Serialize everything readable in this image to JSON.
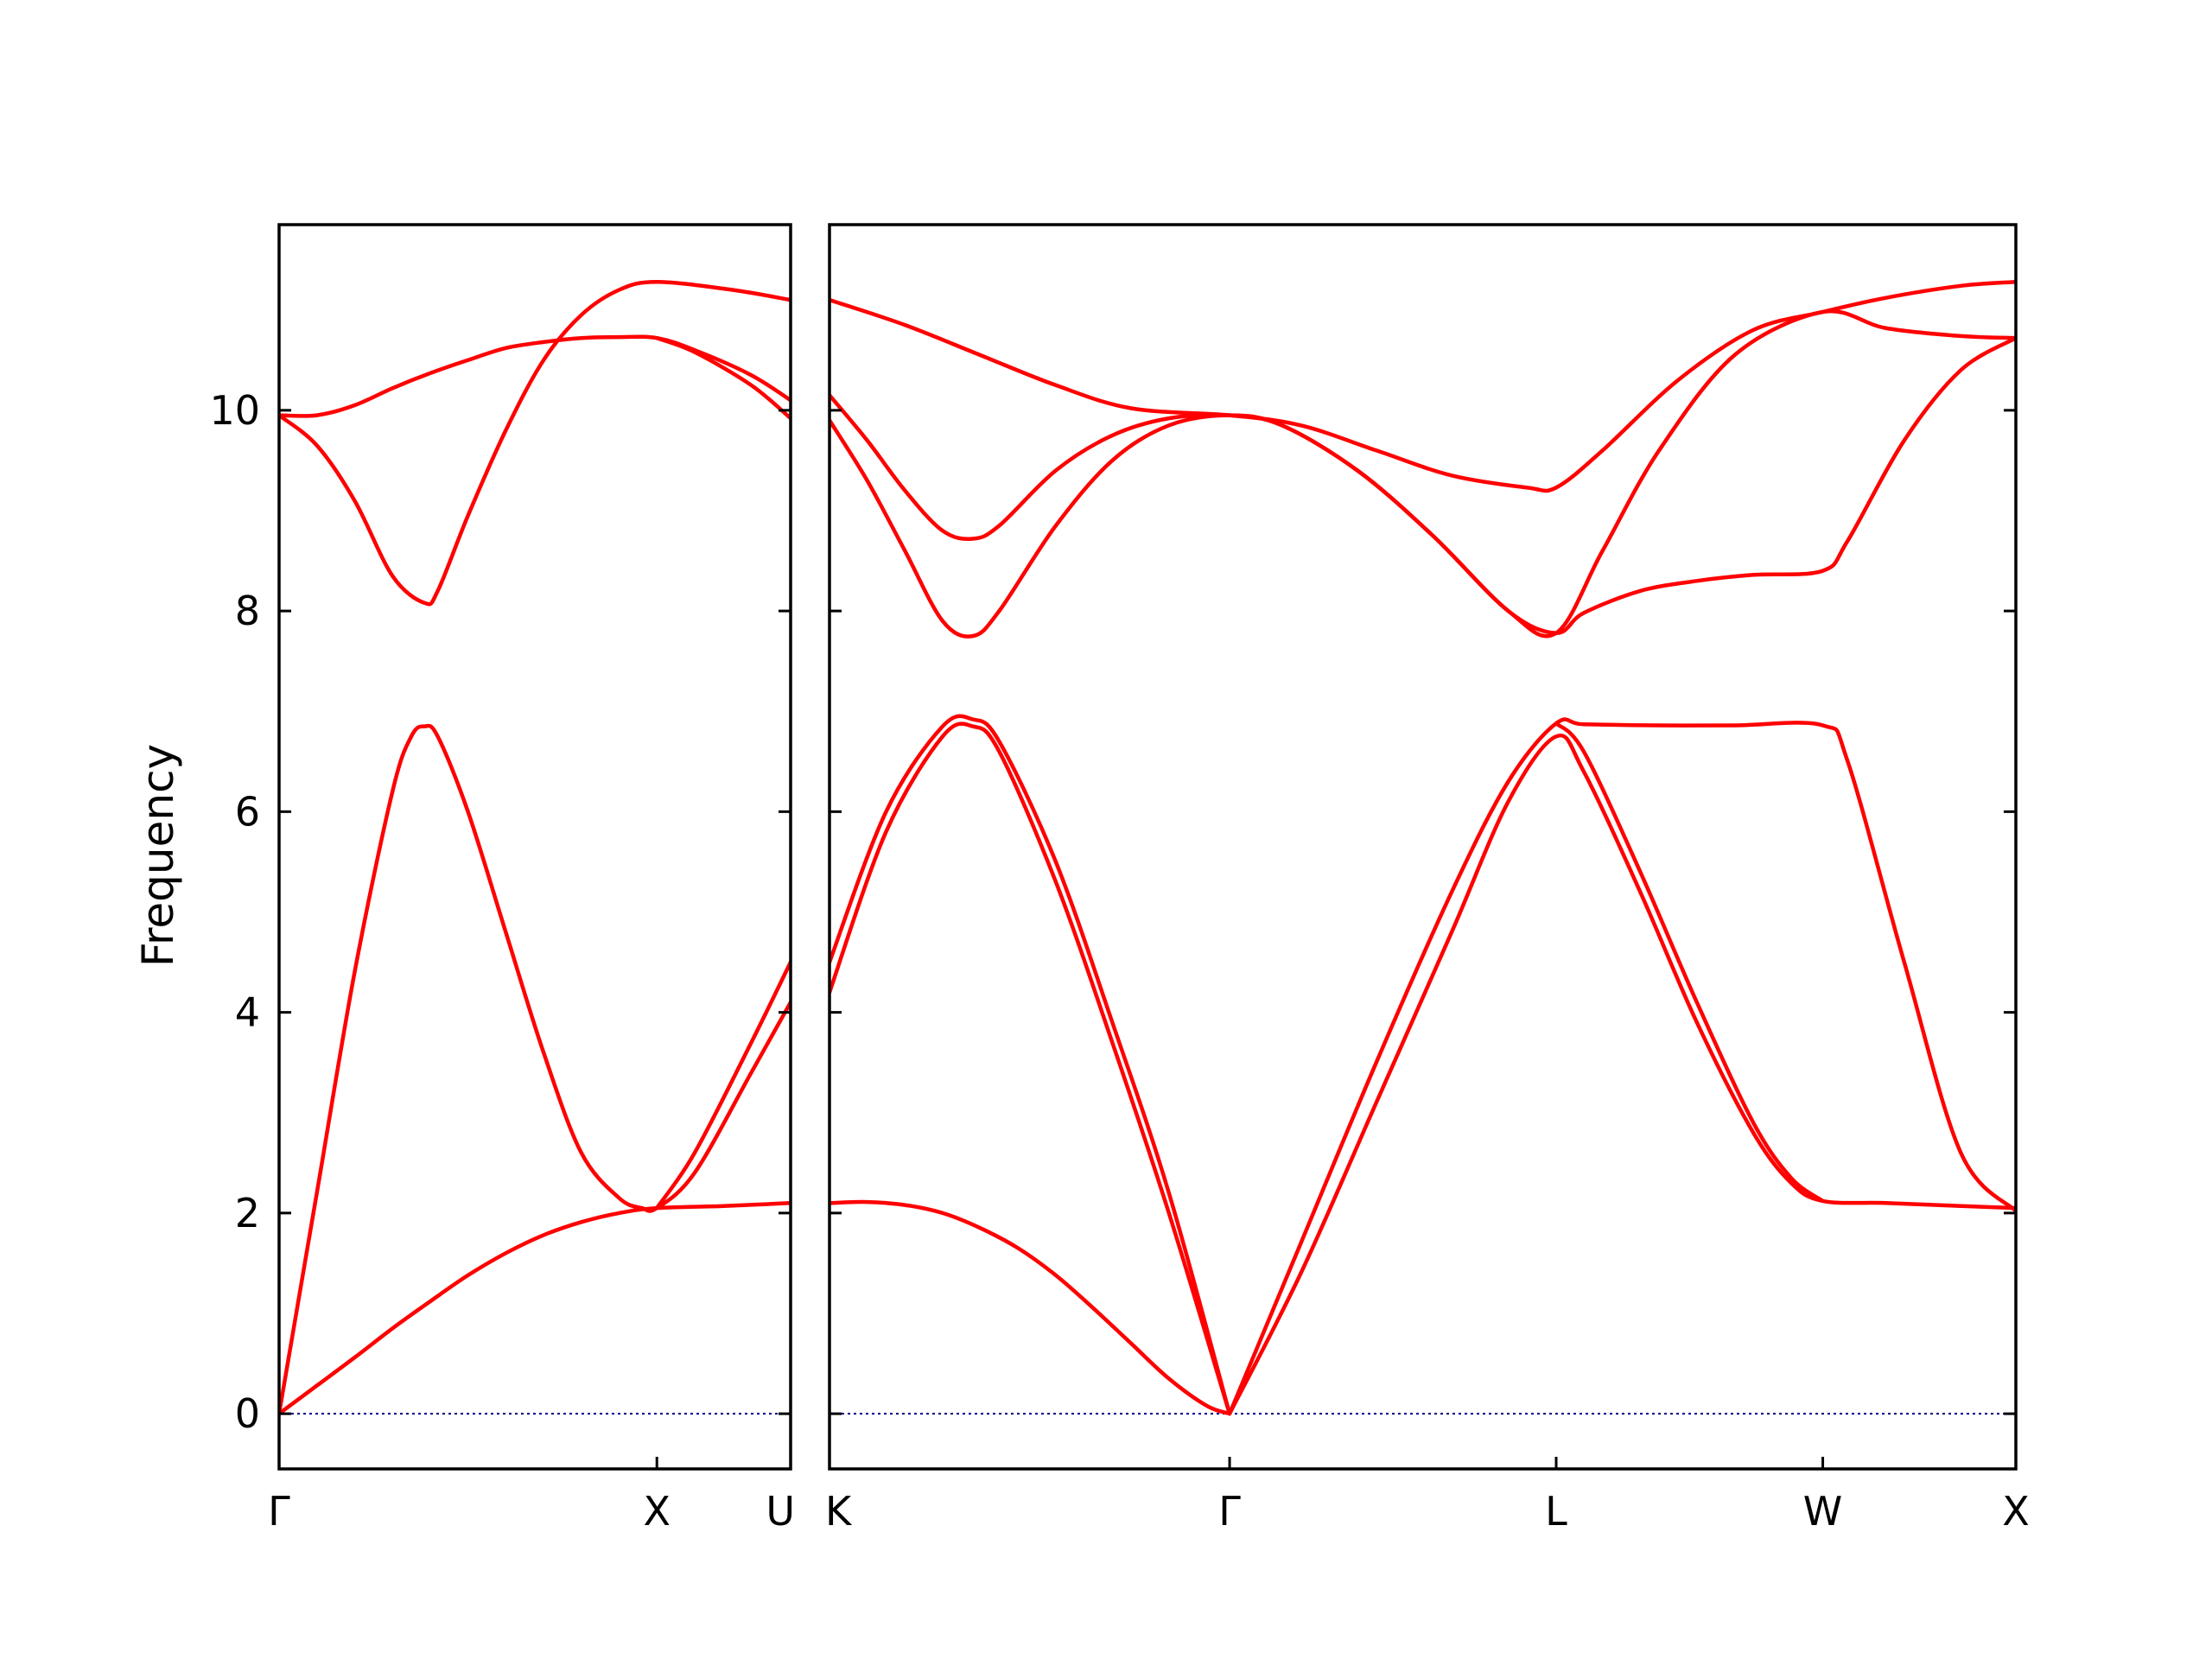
{
  "chart_data": {
    "type": "line",
    "title": "",
    "ylabel": "Frequency",
    "xlabel": "",
    "ylim": [
      -0.55,
      11.85
    ],
    "yticks": [
      0,
      2,
      4,
      6,
      8,
      10
    ],
    "grid": false,
    "legend": "none",
    "band_color": "#ff0000",
    "zero_line_color": "#00008b",
    "panels": [
      {
        "name": "panel-gamma-x-u",
        "x_range": [
          0,
          1.354
        ],
        "ticks": [
          {
            "x": 0,
            "label": "Γ"
          },
          {
            "x": 1.0,
            "label": "X"
          },
          {
            "x": 1.354,
            "label": "U"
          }
        ],
        "series": [
          {
            "values": [
              [
                0,
                0
              ],
              [
                0.1,
                0.28
              ],
              [
                0.2,
                0.56
              ],
              [
                0.3,
                0.85
              ],
              [
                0.4,
                1.12
              ],
              [
                0.5,
                1.38
              ],
              [
                0.6,
                1.6
              ],
              [
                0.7,
                1.78
              ],
              [
                0.8,
                1.91
              ],
              [
                0.9,
                2.0
              ],
              [
                1.0,
                2.05
              ],
              [
                1.177,
                2.07
              ],
              [
                1.354,
                2.1
              ]
            ]
          },
          {
            "values": [
              [
                0,
                0
              ],
              [
                0.1,
                2.2
              ],
              [
                0.2,
                4.4
              ],
              [
                0.3,
                6.2
              ],
              [
                0.35,
                6.75
              ],
              [
                0.385,
                6.85
              ],
              [
                0.42,
                6.75
              ],
              [
                0.5,
                6.0
              ],
              [
                0.6,
                4.8
              ],
              [
                0.7,
                3.6
              ],
              [
                0.8,
                2.6
              ],
              [
                0.9,
                2.15
              ],
              [
                0.96,
                2.05
              ],
              [
                1.0,
                2.05
              ],
              [
                1.1,
                2.4
              ],
              [
                1.25,
                3.4
              ],
              [
                1.354,
                4.1
              ]
            ]
          },
          {
            "values": [
              [
                1.0,
                2.05
              ],
              [
                1.1,
                2.6
              ],
              [
                1.25,
                3.7
              ],
              [
                1.354,
                4.5
              ]
            ]
          },
          {
            "values": [
              [
                0,
                9.95
              ],
              [
                0.1,
                9.95
              ],
              [
                0.2,
                10.05
              ],
              [
                0.3,
                10.22
              ],
              [
                0.4,
                10.37
              ],
              [
                0.5,
                10.5
              ],
              [
                0.6,
                10.62
              ],
              [
                0.7,
                10.68
              ],
              [
                0.8,
                10.72
              ],
              [
                0.9,
                10.73
              ],
              [
                1.0,
                10.72
              ],
              [
                1.1,
                10.6
              ],
              [
                1.25,
                10.35
              ],
              [
                1.354,
                10.1
              ]
            ]
          },
          {
            "values": [
              [
                0,
                9.95
              ],
              [
                0.1,
                9.65
              ],
              [
                0.2,
                9.1
              ],
              [
                0.3,
                8.35
              ],
              [
                0.385,
                8.08
              ],
              [
                0.42,
                8.2
              ],
              [
                0.5,
                8.95
              ],
              [
                0.6,
                9.8
              ],
              [
                0.7,
                10.5
              ],
              [
                0.8,
                10.95
              ],
              [
                0.9,
                11.2
              ],
              [
                1.0,
                11.28
              ],
              [
                1.2,
                11.2
              ],
              [
                1.354,
                11.1
              ]
            ]
          },
          {
            "values": [
              [
                1.0,
                10.72
              ],
              [
                1.1,
                10.58
              ],
              [
                1.25,
                10.25
              ],
              [
                1.354,
                9.92
              ]
            ]
          }
        ]
      },
      {
        "name": "panel-k-gamma-l-w-x",
        "x_range": [
          0,
          3.146
        ],
        "ticks": [
          {
            "x": 0,
            "label": "K"
          },
          {
            "x": 1.061,
            "label": "Γ"
          },
          {
            "x": 1.927,
            "label": "L"
          },
          {
            "x": 2.634,
            "label": "W"
          },
          {
            "x": 3.146,
            "label": "X"
          }
        ],
        "series": [
          {
            "values": [
              [
                0,
                2.1
              ],
              [
                0.1,
                2.11
              ],
              [
                0.2,
                2.08
              ],
              [
                0.3,
                2.0
              ],
              [
                0.4,
                1.85
              ],
              [
                0.5,
                1.65
              ],
              [
                0.6,
                1.38
              ],
              [
                0.7,
                1.05
              ],
              [
                0.8,
                0.7
              ],
              [
                0.9,
                0.35
              ],
              [
                1.0,
                0.08
              ],
              [
                1.061,
                0
              ]
            ]
          },
          {
            "values": [
              [
                0,
                4.2
              ],
              [
                0.15,
                5.8
              ],
              [
                0.3,
                6.75
              ],
              [
                0.38,
                6.85
              ],
              [
                0.45,
                6.6
              ],
              [
                0.6,
                5.3
              ],
              [
                0.75,
                3.7
              ],
              [
                0.9,
                2.0
              ],
              [
                1.061,
                0
              ]
            ]
          },
          {
            "values": [
              [
                0,
                4.5
              ],
              [
                0.15,
                6.0
              ],
              [
                0.3,
                6.85
              ],
              [
                0.38,
                6.92
              ],
              [
                0.45,
                6.7
              ],
              [
                0.6,
                5.5
              ],
              [
                0.75,
                3.9
              ],
              [
                0.9,
                2.2
              ],
              [
                1.061,
                0
              ]
            ]
          },
          {
            "values": [
              [
                1.061,
                0
              ],
              [
                1.25,
                1.7
              ],
              [
                1.45,
                3.5
              ],
              [
                1.65,
                5.2
              ],
              [
                1.8,
                6.3
              ],
              [
                1.927,
                6.88
              ],
              [
                2.0,
                6.87
              ],
              [
                2.2,
                6.86
              ],
              [
                2.4,
                6.86
              ],
              [
                2.634,
                6.86
              ],
              [
                2.7,
                6.5
              ],
              [
                2.85,
                4.5
              ],
              [
                3.0,
                2.6
              ],
              [
                3.146,
                2.02
              ]
            ]
          },
          {
            "values": [
              [
                1.061,
                0
              ],
              [
                1.25,
                1.4
              ],
              [
                1.45,
                3.1
              ],
              [
                1.65,
                4.8
              ],
              [
                1.8,
                6.1
              ],
              [
                1.927,
                6.75
              ],
              [
                2.0,
                6.4
              ],
              [
                2.15,
                5.2
              ],
              [
                2.3,
                3.9
              ],
              [
                2.45,
                2.8
              ],
              [
                2.55,
                2.3
              ],
              [
                2.634,
                2.12
              ],
              [
                2.8,
                2.1
              ],
              [
                3.0,
                2.07
              ],
              [
                3.146,
                2.05
              ]
            ]
          },
          {
            "values": [
              [
                1.927,
                6.88
              ],
              [
                2.0,
                6.6
              ],
              [
                2.15,
                5.4
              ],
              [
                2.3,
                4.1
              ],
              [
                2.45,
                2.9
              ],
              [
                2.55,
                2.35
              ],
              [
                2.634,
                2.12
              ]
            ]
          },
          {
            "values": [
              [
                0,
                9.9
              ],
              [
                0.1,
                9.3
              ],
              [
                0.2,
                8.6
              ],
              [
                0.3,
                7.9
              ],
              [
                0.38,
                7.75
              ],
              [
                0.45,
                8.0
              ],
              [
                0.6,
                8.85
              ],
              [
                0.75,
                9.5
              ],
              [
                0.9,
                9.85
              ],
              [
                1.061,
                9.95
              ],
              [
                1.2,
                9.85
              ],
              [
                1.4,
                9.4
              ],
              [
                1.6,
                8.75
              ],
              [
                1.8,
                8.0
              ],
              [
                1.927,
                7.78
              ],
              [
                2.0,
                7.98
              ],
              [
                2.15,
                8.2
              ],
              [
                2.3,
                8.3
              ],
              [
                2.45,
                8.36
              ],
              [
                2.634,
                8.4
              ],
              [
                2.7,
                8.7
              ],
              [
                2.85,
                9.7
              ],
              [
                3.0,
                10.4
              ],
              [
                3.146,
                10.72
              ]
            ]
          },
          {
            "values": [
              [
                0,
                10.15
              ],
              [
                0.1,
                9.7
              ],
              [
                0.2,
                9.2
              ],
              [
                0.3,
                8.8
              ],
              [
                0.38,
                8.72
              ],
              [
                0.45,
                8.85
              ],
              [
                0.6,
                9.4
              ],
              [
                0.75,
                9.75
              ],
              [
                0.9,
                9.92
              ],
              [
                1.061,
                9.95
              ],
              [
                1.2,
                9.85
              ],
              [
                1.4,
                9.4
              ],
              [
                1.6,
                8.75
              ],
              [
                1.8,
                8.0
              ],
              [
                1.927,
                7.78
              ],
              [
                2.05,
                8.6
              ],
              [
                2.2,
                9.6
              ],
              [
                2.4,
                10.55
              ],
              [
                2.634,
                10.98
              ],
              [
                2.8,
                10.82
              ],
              [
                3.0,
                10.74
              ],
              [
                3.146,
                10.72
              ]
            ]
          },
          {
            "values": [
              [
                0,
                11.1
              ],
              [
                0.2,
                10.85
              ],
              [
                0.4,
                10.55
              ],
              [
                0.6,
                10.25
              ],
              [
                0.8,
                10.02
              ],
              [
                1.061,
                9.95
              ],
              [
                1.25,
                9.85
              ],
              [
                1.45,
                9.6
              ],
              [
                1.65,
                9.35
              ],
              [
                1.85,
                9.23
              ],
              [
                1.927,
                9.23
              ],
              [
                2.05,
                9.6
              ],
              [
                2.25,
                10.3
              ],
              [
                2.45,
                10.8
              ],
              [
                2.634,
                10.98
              ],
              [
                2.8,
                11.12
              ],
              [
                3.0,
                11.24
              ],
              [
                3.146,
                11.28
              ]
            ]
          }
        ]
      }
    ]
  }
}
